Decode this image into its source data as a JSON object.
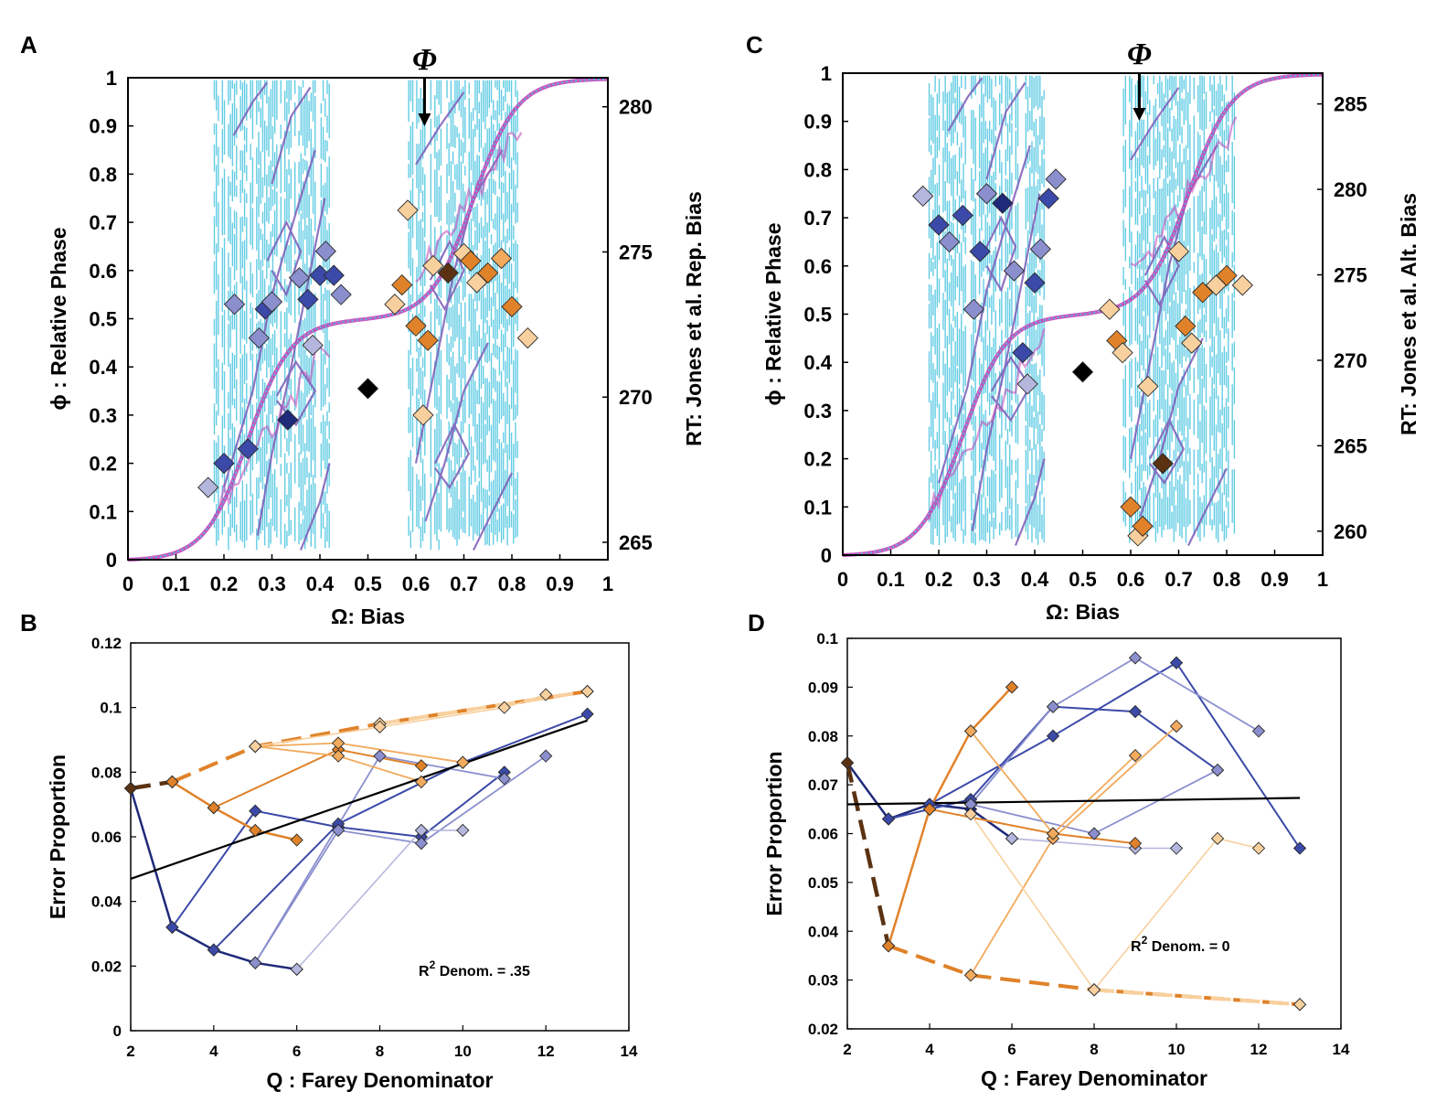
{
  "colors": {
    "cyan": "#48c4e0",
    "purple": "#7d5cb8",
    "magenta": "#c048b8",
    "blueDark": "#1f2a7a",
    "blueMid": "#3b49a8",
    "blueLight": "#8b8fce",
    "blueFaint": "#b4b6de",
    "brownDark": "#5a3212",
    "orangeMid": "#e0822a",
    "orangeLight": "#f2aa5c",
    "orangeFaint": "#f8d09e",
    "black": "#000000"
  },
  "chart_data": [
    {
      "id": "A",
      "type": "scatter",
      "panel_label": "A",
      "xlabel": "Ω: Bias",
      "ylabel": "ϕ : Relative  Phase",
      "ylabel_right": "RT: Jones et al. Rep. Bias",
      "xlim": [
        0,
        1
      ],
      "ylim": [
        0,
        1
      ],
      "x_ticks": [
        "0",
        "0.1",
        "0.2",
        "0.3",
        "0.4",
        "0.5",
        "0.6",
        "0.7",
        "0.8",
        "0.9",
        "1"
      ],
      "y_ticks": [
        "0",
        "0.1",
        "0.2",
        "0.3",
        "0.4",
        "0.5",
        "0.6",
        "0.7",
        "0.8",
        "0.9",
        "1"
      ],
      "right_axis": {
        "ticks": [
          "265",
          "270",
          "275",
          "280"
        ],
        "values": [
          265,
          270,
          275,
          280
        ],
        "ylim": [
          264.4,
          281
        ]
      },
      "arrow_x": 0.618,
      "arrow_label": "Φ",
      "background": "devil's staircase (cyan/purple phase map)",
      "points": [
        {
          "x": 0.167,
          "y": 0.15,
          "c": "blueFaint"
        },
        {
          "x": 0.2,
          "y": 0.2,
          "c": "blueMid"
        },
        {
          "x": 0.25,
          "y": 0.23,
          "c": "blueMid"
        },
        {
          "x": 0.222,
          "y": 0.53,
          "c": "blueLight"
        },
        {
          "x": 0.273,
          "y": 0.46,
          "c": "blueLight"
        },
        {
          "x": 0.286,
          "y": 0.52,
          "c": "blueMid"
        },
        {
          "x": 0.3,
          "y": 0.535,
          "c": "blueLight"
        },
        {
          "x": 0.333,
          "y": 0.29,
          "c": "blueDark"
        },
        {
          "x": 0.357,
          "y": 0.585,
          "c": "blueLight"
        },
        {
          "x": 0.375,
          "y": 0.54,
          "c": "blueMid"
        },
        {
          "x": 0.385,
          "y": 0.445,
          "c": "blueFaint"
        },
        {
          "x": 0.4,
          "y": 0.59,
          "c": "blueMid"
        },
        {
          "x": 0.412,
          "y": 0.64,
          "c": "blueLight"
        },
        {
          "x": 0.429,
          "y": 0.59,
          "c": "blueMid"
        },
        {
          "x": 0.444,
          "y": 0.55,
          "c": "blueLight"
        },
        {
          "x": 0.5,
          "y": 0.355,
          "c": "black"
        },
        {
          "x": 0.556,
          "y": 0.53,
          "c": "orangeFaint"
        },
        {
          "x": 0.571,
          "y": 0.57,
          "c": "orangeMid"
        },
        {
          "x": 0.583,
          "y": 0.725,
          "c": "orangeFaint"
        },
        {
          "x": 0.6,
          "y": 0.485,
          "c": "orangeMid"
        },
        {
          "x": 0.615,
          "y": 0.3,
          "c": "orangeFaint"
        },
        {
          "x": 0.625,
          "y": 0.455,
          "c": "orangeMid"
        },
        {
          "x": 0.636,
          "y": 0.61,
          "c": "orangeFaint"
        },
        {
          "x": 0.667,
          "y": 0.595,
          "c": "brownDark"
        },
        {
          "x": 0.7,
          "y": 0.635,
          "c": "orangeFaint"
        },
        {
          "x": 0.714,
          "y": 0.62,
          "c": "orangeMid"
        },
        {
          "x": 0.727,
          "y": 0.575,
          "c": "orangeFaint"
        },
        {
          "x": 0.75,
          "y": 0.595,
          "c": "orangeMid"
        },
        {
          "x": 0.778,
          "y": 0.625,
          "c": "orangeLight"
        },
        {
          "x": 0.8,
          "y": 0.525,
          "c": "orangeMid"
        },
        {
          "x": 0.833,
          "y": 0.46,
          "c": "orangeFaint"
        }
      ]
    },
    {
      "id": "C",
      "type": "scatter",
      "panel_label": "C",
      "xlabel": "Ω: Bias",
      "ylabel": "ϕ : Relative  Phase",
      "ylabel_right": "RT: Jones et al. Alt. Bias",
      "xlim": [
        0,
        1
      ],
      "ylim": [
        0,
        1
      ],
      "x_ticks": [
        "0",
        "0.1",
        "0.2",
        "0.3",
        "0.4",
        "0.5",
        "0.6",
        "0.7",
        "0.8",
        "0.9",
        "1"
      ],
      "y_ticks": [
        "0",
        "0.1",
        "0.2",
        "0.3",
        "0.4",
        "0.5",
        "0.6",
        "0.7",
        "0.8",
        "0.9",
        "1"
      ],
      "right_axis": {
        "ticks": [
          "260",
          "265",
          "270",
          "275",
          "280",
          "285"
        ],
        "values": [
          260,
          265,
          270,
          275,
          280,
          285
        ],
        "ylim": [
          258.6,
          286.8
        ]
      },
      "arrow_x": 0.618,
      "arrow_label": "Φ",
      "background": "devil's staircase (cyan/purple phase map)",
      "points": [
        {
          "x": 0.167,
          "y": 0.745,
          "c": "blueFaint"
        },
        {
          "x": 0.2,
          "y": 0.685,
          "c": "blueMid"
        },
        {
          "x": 0.222,
          "y": 0.65,
          "c": "blueLight"
        },
        {
          "x": 0.25,
          "y": 0.705,
          "c": "blueMid"
        },
        {
          "x": 0.273,
          "y": 0.51,
          "c": "blueLight"
        },
        {
          "x": 0.286,
          "y": 0.63,
          "c": "blueMid"
        },
        {
          "x": 0.3,
          "y": 0.75,
          "c": "blueLight"
        },
        {
          "x": 0.333,
          "y": 0.73,
          "c": "blueDark"
        },
        {
          "x": 0.357,
          "y": 0.59,
          "c": "blueLight"
        },
        {
          "x": 0.375,
          "y": 0.42,
          "c": "blueMid"
        },
        {
          "x": 0.385,
          "y": 0.355,
          "c": "blueFaint"
        },
        {
          "x": 0.4,
          "y": 0.565,
          "c": "blueMid"
        },
        {
          "x": 0.412,
          "y": 0.635,
          "c": "blueLight"
        },
        {
          "x": 0.429,
          "y": 0.74,
          "c": "blueMid"
        },
        {
          "x": 0.444,
          "y": 0.78,
          "c": "blueLight"
        },
        {
          "x": 0.5,
          "y": 0.38,
          "c": "black"
        },
        {
          "x": 0.556,
          "y": 0.51,
          "c": "orangeFaint"
        },
        {
          "x": 0.571,
          "y": 0.445,
          "c": "orangeMid"
        },
        {
          "x": 0.583,
          "y": 0.42,
          "c": "orangeFaint"
        },
        {
          "x": 0.6,
          "y": 0.1,
          "c": "orangeMid"
        },
        {
          "x": 0.615,
          "y": 0.04,
          "c": "orangeFaint"
        },
        {
          "x": 0.625,
          "y": 0.06,
          "c": "orangeMid"
        },
        {
          "x": 0.636,
          "y": 0.35,
          "c": "orangeFaint"
        },
        {
          "x": 0.667,
          "y": 0.19,
          "c": "brownDark"
        },
        {
          "x": 0.7,
          "y": 0.63,
          "c": "orangeFaint"
        },
        {
          "x": 0.714,
          "y": 0.475,
          "c": "orangeMid"
        },
        {
          "x": 0.727,
          "y": 0.44,
          "c": "orangeFaint"
        },
        {
          "x": 0.75,
          "y": 0.545,
          "c": "orangeMid"
        },
        {
          "x": 0.778,
          "y": 0.56,
          "c": "orangeFaint"
        },
        {
          "x": 0.8,
          "y": 0.58,
          "c": "orangeMid"
        },
        {
          "x": 0.833,
          "y": 0.56,
          "c": "orangeFaint"
        }
      ]
    },
    {
      "id": "B",
      "type": "line",
      "panel_label": "B",
      "xlabel": "Q : Farey Denominator",
      "ylabel": "Error Proportion",
      "xlim": [
        2,
        14
      ],
      "ylim": [
        0,
        0.12
      ],
      "x_ticks": [
        "2",
        "4",
        "6",
        "8",
        "10",
        "12",
        "14"
      ],
      "x_tick_values": [
        2,
        4,
        6,
        8,
        10,
        12,
        14
      ],
      "y_ticks": [
        "0",
        "0.02",
        "0.04",
        "0.06",
        "0.08",
        "0.1",
        "0.12"
      ],
      "y_tick_values": [
        0,
        0.02,
        0.04,
        0.06,
        0.08,
        0.1,
        0.12
      ],
      "annotation": "R",
      "annotation_sup": "2",
      "annotation_rest": " Denom. = .35",
      "fit_line": {
        "x": [
          2,
          13
        ],
        "y": [
          0.047,
          0.096
        ]
      },
      "series": [
        {
          "c": "blueDark",
          "w": 2.5,
          "x": [
            2,
            3,
            4,
            5,
            6
          ],
          "y": [
            0.075,
            0.032,
            0.025,
            0.021,
            0.019
          ]
        },
        {
          "c": "blueMid",
          "w": 2.0,
          "x": [
            3,
            5,
            7,
            9,
            11
          ],
          "y": [
            0.032,
            0.068,
            0.063,
            0.06,
            0.08
          ]
        },
        {
          "c": "blueMid",
          "w": 2.0,
          "x": [
            4,
            7,
            10,
            13
          ],
          "y": [
            0.025,
            0.064,
            0.083,
            0.098
          ]
        },
        {
          "c": "blueLight",
          "w": 1.8,
          "x": [
            5,
            8,
            11
          ],
          "y": [
            0.021,
            0.085,
            0.078
          ]
        },
        {
          "c": "blueLight",
          "w": 1.8,
          "x": [
            5,
            7,
            9,
            12
          ],
          "y": [
            0.021,
            0.062,
            0.058,
            0.085
          ]
        },
        {
          "c": "blueFaint",
          "w": 1.6,
          "x": [
            6,
            9,
            10
          ],
          "y": [
            0.019,
            0.062,
            0.062
          ]
        },
        {
          "c": "brownDark",
          "w": 4.5,
          "dash": true,
          "x": [
            2,
            3
          ],
          "y": [
            0.075,
            0.077
          ]
        },
        {
          "c": "orangeMid",
          "w": 4.0,
          "dash": true,
          "x": [
            3,
            5,
            8,
            13
          ],
          "y": [
            0.077,
            0.088,
            0.095,
            0.105
          ]
        },
        {
          "c": "orangeFaint",
          "w": 4.0,
          "dash": true,
          "x": [
            8,
            13
          ],
          "y": [
            0.095,
            0.105
          ]
        },
        {
          "c": "orangeMid",
          "w": 2.5,
          "x": [
            3,
            4,
            5,
            6
          ],
          "y": [
            0.077,
            0.069,
            0.062,
            0.059
          ]
        },
        {
          "c": "orangeMid",
          "w": 2.0,
          "x": [
            4,
            7,
            9
          ],
          "y": [
            0.069,
            0.087,
            0.082
          ]
        },
        {
          "c": "orangeLight",
          "w": 1.8,
          "x": [
            5,
            7,
            10
          ],
          "y": [
            0.088,
            0.089,
            0.083
          ]
        },
        {
          "c": "orangeLight",
          "w": 1.8,
          "x": [
            5,
            7,
            9
          ],
          "y": [
            0.088,
            0.085,
            0.077
          ]
        },
        {
          "c": "orangeFaint",
          "w": 1.6,
          "x": [
            5,
            8,
            11,
            12
          ],
          "y": [
            0.088,
            0.094,
            0.1,
            0.104
          ]
        }
      ]
    },
    {
      "id": "D",
      "type": "line",
      "panel_label": "D",
      "xlabel": "Q : Farey Denominator",
      "ylabel": "Error Proportion",
      "xlim": [
        2,
        14
      ],
      "ylim": [
        0.02,
        0.1
      ],
      "x_ticks": [
        "2",
        "4",
        "6",
        "8",
        "10",
        "12",
        "14"
      ],
      "x_tick_values": [
        2,
        4,
        6,
        8,
        10,
        12,
        14
      ],
      "y_ticks": [
        "0.02",
        "0.03",
        "0.04",
        "0.05",
        "0.06",
        "0.07",
        "0.08",
        "0.09",
        "0.1"
      ],
      "y_tick_values": [
        0.02,
        0.03,
        0.04,
        0.05,
        0.06,
        0.07,
        0.08,
        0.09,
        0.1
      ],
      "annotation": "R",
      "annotation_sup": "2",
      "annotation_rest": " Denom. = 0",
      "fit_line": {
        "x": [
          2,
          13
        ],
        "y": [
          0.066,
          0.0673
        ]
      },
      "series": [
        {
          "c": "blueDark",
          "w": 2.5,
          "x": [
            2,
            3,
            4,
            5,
            6
          ],
          "y": [
            0.0745,
            0.063,
            0.066,
            0.065,
            0.059
          ]
        },
        {
          "c": "blueMid",
          "w": 2.0,
          "x": [
            3,
            5,
            7,
            9,
            11
          ],
          "y": [
            0.063,
            0.067,
            0.086,
            0.085,
            0.073
          ]
        },
        {
          "c": "blueMid",
          "w": 2.0,
          "x": [
            4,
            7,
            10,
            13
          ],
          "y": [
            0.066,
            0.08,
            0.095,
            0.057
          ]
        },
        {
          "c": "blueLight",
          "w": 1.8,
          "x": [
            5,
            8,
            11
          ],
          "y": [
            0.066,
            0.06,
            0.073
          ]
        },
        {
          "c": "blueLight",
          "w": 1.8,
          "x": [
            5,
            7,
            9,
            12
          ],
          "y": [
            0.066,
            0.086,
            0.096,
            0.081
          ]
        },
        {
          "c": "blueFaint",
          "w": 1.6,
          "x": [
            6,
            9,
            10
          ],
          "y": [
            0.059,
            0.057,
            0.057
          ]
        },
        {
          "c": "brownDark",
          "w": 4.5,
          "dash": true,
          "x": [
            2,
            3
          ],
          "y": [
            0.0745,
            0.037
          ]
        },
        {
          "c": "orangeMid",
          "w": 4.0,
          "dash": true,
          "x": [
            3,
            5,
            8,
            13
          ],
          "y": [
            0.037,
            0.031,
            0.028,
            0.025
          ]
        },
        {
          "c": "orangeFaint",
          "w": 4.0,
          "dash": true,
          "x": [
            8,
            13
          ],
          "y": [
            0.028,
            0.025
          ]
        },
        {
          "c": "orangeMid",
          "w": 2.5,
          "x": [
            3,
            4,
            5,
            6
          ],
          "y": [
            0.037,
            0.065,
            0.081,
            0.09
          ]
        },
        {
          "c": "orangeMid",
          "w": 2.0,
          "x": [
            4,
            7,
            9
          ],
          "y": [
            0.065,
            0.06,
            0.058
          ]
        },
        {
          "c": "orangeLight",
          "w": 1.8,
          "x": [
            5,
            7,
            10
          ],
          "y": [
            0.031,
            0.059,
            0.082
          ]
        },
        {
          "c": "orangeLight",
          "w": 1.8,
          "x": [
            5,
            7,
            9
          ],
          "y": [
            0.081,
            0.06,
            0.076
          ]
        },
        {
          "c": "orangeFaint",
          "w": 1.6,
          "x": [
            5,
            8,
            11,
            12
          ],
          "y": [
            0.064,
            0.028,
            0.059,
            0.057
          ]
        }
      ]
    }
  ]
}
